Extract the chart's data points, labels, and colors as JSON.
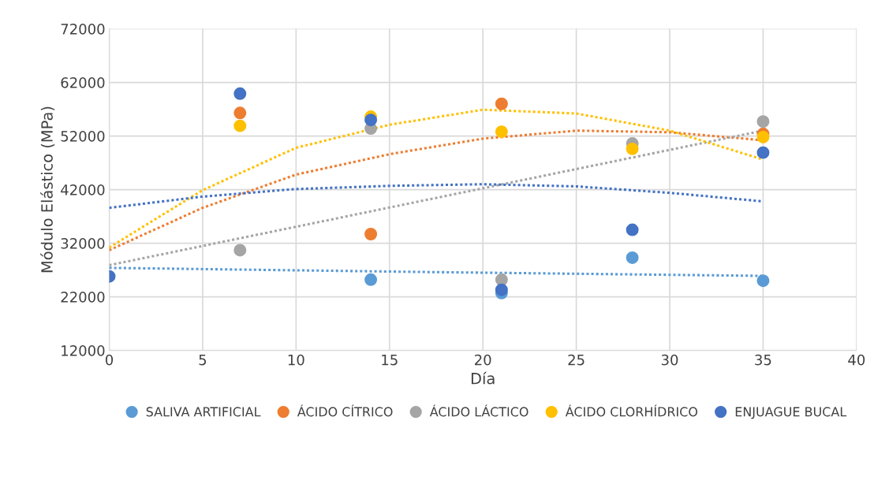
{
  "chart_data": {
    "type": "scatter",
    "xlabel": "Día",
    "ylabel": "Módulo Elástico (MPa)",
    "xlim": [
      0,
      40
    ],
    "xticks": [
      0,
      5,
      10,
      15,
      20,
      25,
      30,
      35,
      40
    ],
    "ylim": [
      12000,
      72000
    ],
    "yticks": [
      12000,
      22000,
      32000,
      42000,
      52000,
      62000,
      72000
    ],
    "grid": true,
    "legend": "bottom",
    "marker": "circle",
    "series": [
      {
        "type": "line",
        "line_style": "dotted",
        "marker": "none",
        "color": "#5b9bd5",
        "x": [
          0,
          17.5,
          35
        ],
        "values": [
          27400,
          26600,
          25900
        ]
      },
      {
        "type": "line",
        "line_style": "dotted",
        "marker": "none",
        "color": "#ed7d31",
        "x": [
          0,
          5,
          10,
          15,
          20,
          25,
          30,
          35
        ],
        "values": [
          30700,
          38600,
          44800,
          48600,
          51500,
          53000,
          52700,
          51200
        ]
      },
      {
        "type": "line",
        "line_style": "dotted",
        "marker": "none",
        "color": "#a5a5a5",
        "x": [
          0,
          35
        ],
        "values": [
          27900,
          53000
        ]
      },
      {
        "type": "line",
        "line_style": "dotted",
        "marker": "none",
        "color": "#ffc000",
        "x": [
          0,
          5,
          10,
          15,
          20,
          25,
          30,
          35
        ],
        "values": [
          31200,
          41900,
          49800,
          54100,
          56900,
          56200,
          53000,
          47600
        ]
      },
      {
        "type": "line",
        "line_style": "dotted",
        "marker": "none",
        "color": "#4472c4",
        "x": [
          0,
          5,
          10,
          15,
          20,
          25,
          30,
          35
        ],
        "values": [
          38600,
          40700,
          42100,
          42700,
          43000,
          42600,
          41400,
          39800
        ]
      },
      {
        "name": "SALIVA ARTIFICIAL",
        "color": "#5b9bd5",
        "x": [
          14,
          21,
          28,
          35
        ],
        "values": [
          25200,
          22700,
          29300,
          25000
        ]
      },
      {
        "name": "ÁCIDO CÍTRICO",
        "color": "#ed7d31",
        "x": [
          7,
          14,
          21,
          28,
          35
        ],
        "values": [
          56300,
          33700,
          58000,
          null,
          52400
        ]
      },
      {
        "name": "ÁCIDO LÁCTICO",
        "color": "#a5a5a5",
        "x": [
          7,
          14,
          21,
          28,
          35
        ],
        "values": [
          30700,
          53400,
          25200,
          50600,
          54700
        ]
      },
      {
        "name": "ÁCIDO CLORHÍDRICO",
        "color": "#ffc000",
        "x": [
          7,
          14,
          21,
          28,
          35
        ],
        "values": [
          53900,
          55600,
          52800,
          49600,
          51800
        ]
      },
      {
        "name": "ENJUAGUE BUCAL",
        "color": "#4472c4",
        "x": [
          0,
          7,
          14,
          21,
          28,
          35
        ],
        "values": [
          25800,
          59900,
          55000,
          23300,
          34500,
          48900
        ]
      }
    ]
  }
}
